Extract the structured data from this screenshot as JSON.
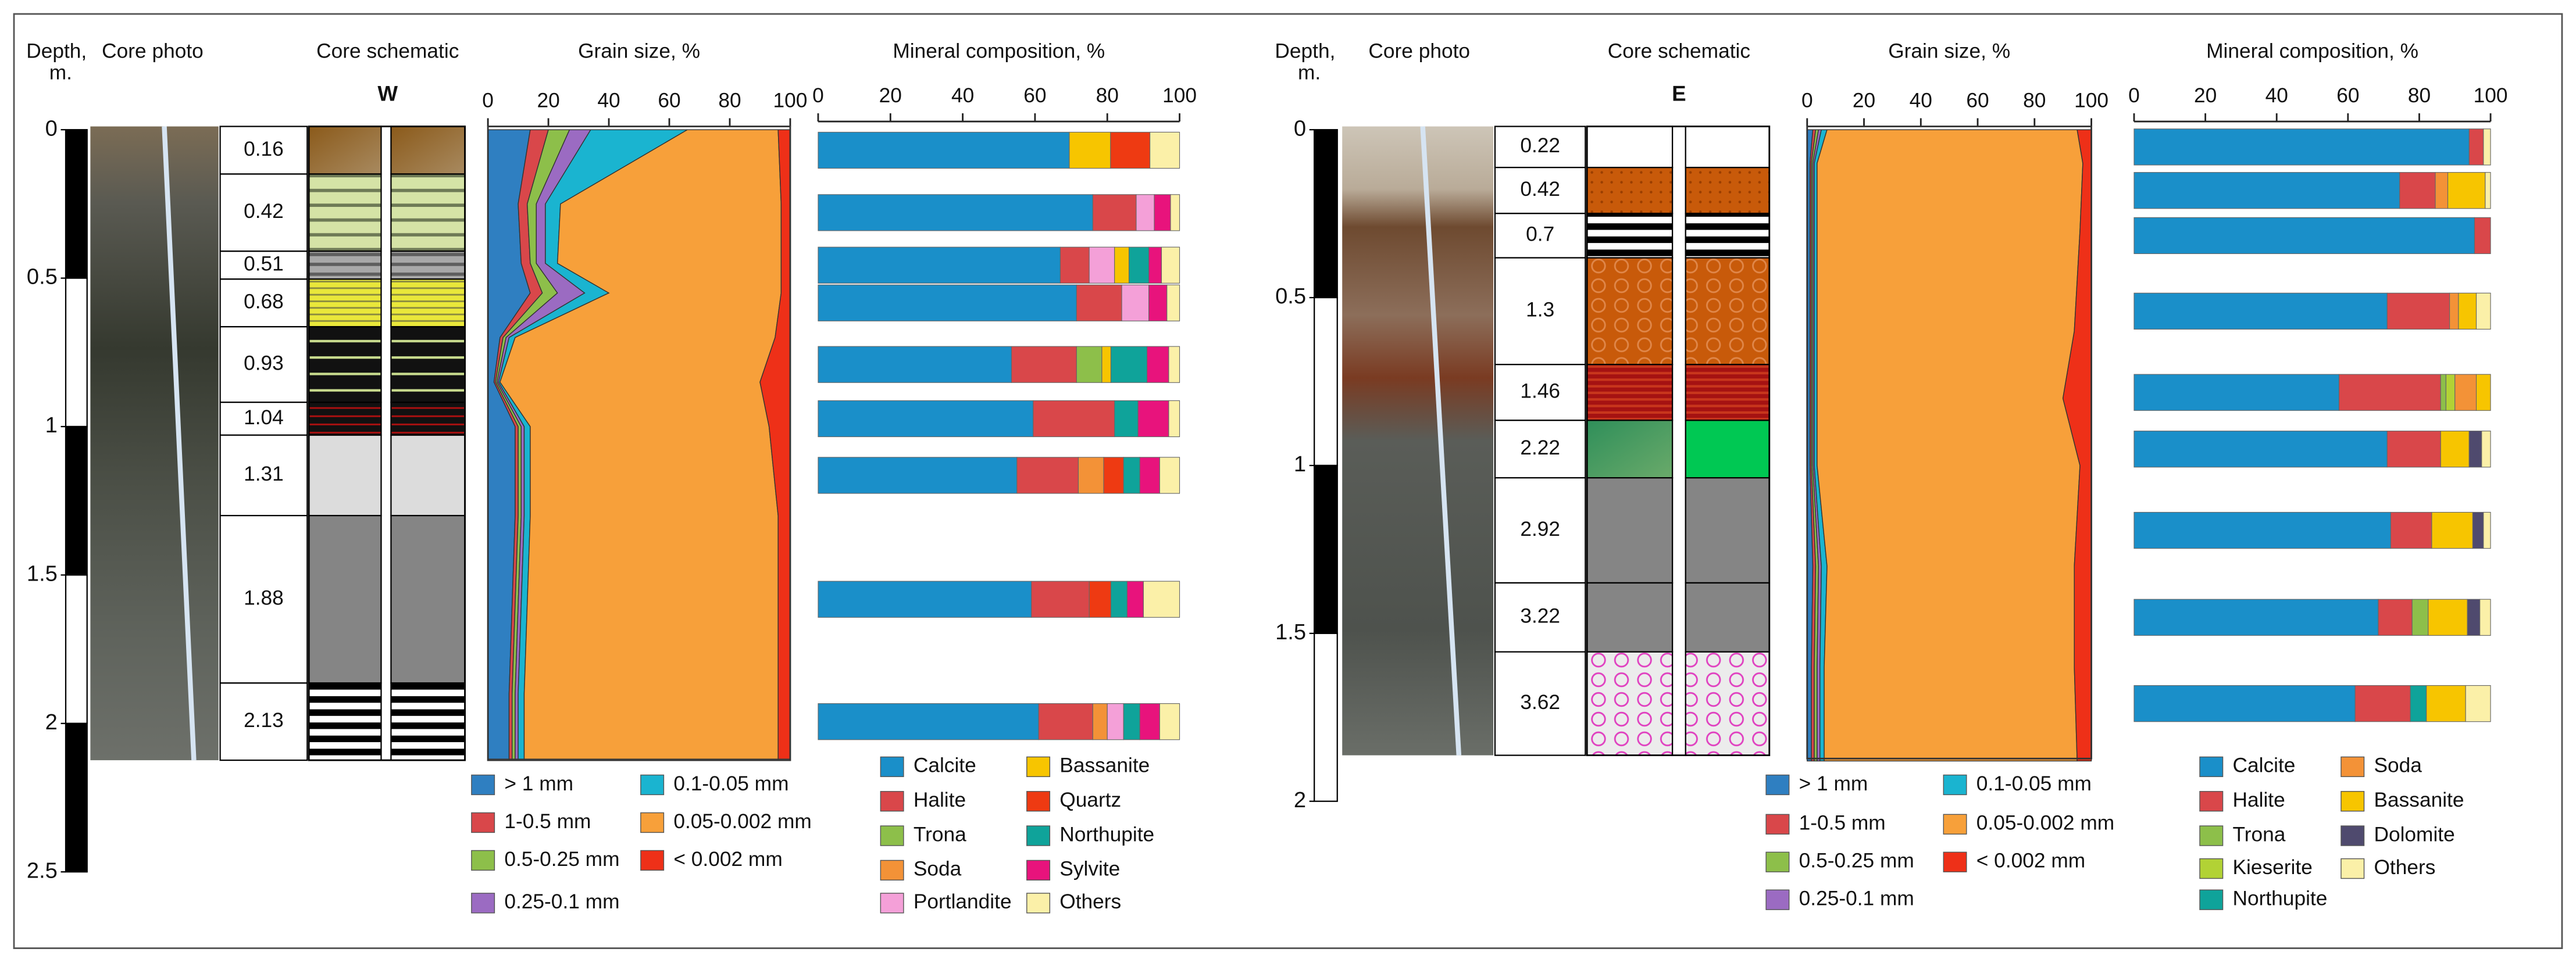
{
  "panels": [
    {
      "depth_label": [
        "Depth,",
        "m."
      ],
      "photo_label": "Core photo",
      "depth_axis": {
        "ylim": [
          0,
          2.5
        ],
        "yticks": [
          0,
          0.5,
          1,
          1.5,
          2,
          2.5
        ]
      },
      "schematic": {
        "title": "Core schematic",
        "code": "W",
        "labels": [
          0.16,
          0.42,
          0.51,
          0.68,
          0.93,
          1.04,
          1.31,
          1.88,
          2.13
        ]
      }
    },
    {
      "depth_label": [
        "Depth,",
        "m."
      ],
      "photo_label": "Core photo",
      "depth_axis": {
        "ylim": [
          0,
          2
        ],
        "yticks": [
          0,
          0.5,
          1,
          1.5,
          2
        ]
      },
      "schematic": {
        "title": "Core schematic",
        "code": "E",
        "labels": [
          0.22,
          0.42,
          0.7,
          1.3,
          1.46,
          2.22,
          2.92,
          3.22,
          3.62
        ]
      }
    }
  ],
  "chart_data": [
    {
      "type": "area",
      "stacked": true,
      "title": "Grain size, %",
      "xlim": [
        0,
        100
      ],
      "xticks": [
        0,
        20,
        40,
        60,
        80,
        100
      ],
      "y": [
        0,
        0.25,
        0.45,
        0.55,
        0.7,
        0.85,
        1.0,
        1.3,
        1.6,
        1.9,
        2.12
      ],
      "series": [
        {
          "name": "> 1 mm",
          "color": "#2f7fc1",
          "values": [
            14,
            10,
            11,
            14,
            4,
            2,
            9,
            9,
            8,
            7,
            7
          ]
        },
        {
          "name": "1-0.5 mm",
          "color": "#d9474a",
          "values": [
            6,
            3,
            3,
            4,
            1,
            0.5,
            1,
            1,
            1,
            1,
            1
          ]
        },
        {
          "name": "0.5-0.25 mm",
          "color": "#8dbf4a",
          "values": [
            7,
            3,
            2,
            5,
            1,
            0.5,
            1,
            1,
            1,
            1,
            1
          ]
        },
        {
          "name": "0.25-0.1 mm",
          "color": "#9b6bc2",
          "values": [
            7,
            3,
            3,
            9,
            1,
            0.5,
            1,
            1,
            1,
            1,
            1
          ]
        },
        {
          "name": "0.1-0.05 mm",
          "color": "#1ab4d0",
          "values": [
            32,
            5,
            4,
            8,
            2,
            0.5,
            2,
            2,
            2,
            2,
            2
          ]
        },
        {
          "name": "0.05-0.002 mm",
          "color": "#f7a03a",
          "values": [
            30,
            73,
            74,
            57,
            86,
            86,
            79,
            82,
            83,
            84,
            84
          ]
        },
        {
          "name": "< 0.002 mm",
          "color": "#ee3018",
          "values": [
            4,
            3,
            3,
            3,
            5,
            10,
            7,
            4,
            4,
            4,
            4
          ]
        }
      ]
    },
    {
      "type": "bar",
      "stacked": true,
      "title": "Mineral composition, %",
      "xlim": [
        0,
        100
      ],
      "xticks": [
        0,
        20,
        40,
        60,
        80,
        100
      ],
      "categories": [
        null,
        null,
        null,
        null,
        null,
        null,
        null,
        null,
        null
      ],
      "series": [
        {
          "name": "Calcite",
          "color": "#1a8fc9",
          "values": [
            69.5,
            76,
            67,
            71.5,
            53.5,
            59.5,
            55,
            59,
            61
          ]
        },
        {
          "name": "Halite",
          "color": "#d9474a",
          "values": [
            0,
            12,
            8,
            12.5,
            18,
            22.5,
            17,
            16,
            15
          ]
        },
        {
          "name": "Trona",
          "color": "#8dbf4a",
          "values": [
            0,
            0,
            0,
            0,
            7,
            0,
            0,
            0,
            0
          ]
        },
        {
          "name": "Soda",
          "color": "#f39237",
          "values": [
            0,
            0,
            0,
            0,
            0,
            0,
            7,
            0,
            4
          ]
        },
        {
          "name": "Portlandite",
          "color": "#f4a0d8",
          "values": [
            0,
            5,
            7,
            7.5,
            0,
            0,
            0,
            0,
            4.5
          ]
        },
        {
          "name": "Bassanite",
          "color": "#f7c500",
          "values": [
            11.4,
            0,
            4,
            0,
            2.5,
            0,
            0,
            0,
            0
          ]
        },
        {
          "name": "Quartz",
          "color": "#ee3a12",
          "values": [
            10.9,
            0,
            0,
            0,
            0,
            0,
            5.5,
            6,
            0
          ]
        },
        {
          "name": "Northupite",
          "color": "#0fa39a",
          "values": [
            0,
            0,
            5.5,
            0,
            10,
            6.5,
            4.5,
            4.5,
            4.5
          ]
        },
        {
          "name": "Sylvite",
          "color": "#e8137c",
          "values": [
            0,
            4.5,
            3.5,
            5,
            6,
            8.5,
            5.5,
            4.5,
            5.5
          ]
        },
        {
          "name": "Others",
          "color": "#fbf0a8",
          "values": [
            8.2,
            2.5,
            5,
            3.5,
            3,
            3,
            5.5,
            10,
            5.5
          ]
        }
      ]
    },
    {
      "type": "area",
      "stacked": true,
      "title": "Grain size, %",
      "xlim": [
        0,
        100
      ],
      "xticks": [
        0,
        20,
        40,
        60,
        80,
        100
      ],
      "y": [
        0,
        0.1,
        0.3,
        0.6,
        0.8,
        1.0,
        1.3,
        1.6,
        1.88
      ],
      "series": [
        {
          "name": "> 1 mm",
          "color": "#2f7fc1",
          "values": [
            2,
            1,
            1,
            1,
            1,
            1,
            2,
            1.5,
            1.5
          ]
        },
        {
          "name": "1-0.5 mm",
          "color": "#d9474a",
          "values": [
            1,
            0.5,
            0.5,
            0.5,
            0.5,
            0.5,
            1,
            1,
            1
          ]
        },
        {
          "name": "0.5-0.25 mm",
          "color": "#8dbf4a",
          "values": [
            1,
            0.5,
            0.5,
            0.5,
            0.5,
            0.5,
            1,
            1,
            1
          ]
        },
        {
          "name": "0.25-0.1 mm",
          "color": "#9b6bc2",
          "values": [
            1,
            0.5,
            0.5,
            0.5,
            0.5,
            0.5,
            1,
            1,
            1
          ]
        },
        {
          "name": "0.1-0.05 mm",
          "color": "#1ab4d0",
          "values": [
            2,
            1,
            1,
            1,
            1,
            1,
            2,
            1.5,
            1.5
          ]
        },
        {
          "name": "0.05-0.002 mm",
          "color": "#f7a03a",
          "values": [
            88,
            93.5,
            92.5,
            90.5,
            86.5,
            92.5,
            87,
            88,
            89
          ]
        },
        {
          "name": "< 0.002 mm",
          "color": "#ee3018",
          "values": [
            5,
            3,
            4,
            6,
            10,
            4,
            6,
            6,
            5
          ]
        }
      ]
    },
    {
      "type": "bar",
      "stacked": true,
      "title": "Mineral composition, %",
      "xlim": [
        0,
        100
      ],
      "xticks": [
        0,
        20,
        40,
        60,
        80,
        100
      ],
      "categories": [
        null,
        null,
        null,
        null,
        null,
        null,
        null,
        null,
        null
      ],
      "series": [
        {
          "name": "Calcite",
          "color": "#1a8fc9",
          "values": [
            94,
            74.5,
            95.5,
            71,
            57.5,
            71,
            72,
            68.5,
            62
          ]
        },
        {
          "name": "Halite",
          "color": "#d9474a",
          "values": [
            4,
            10,
            4.5,
            17.5,
            28.5,
            15,
            11.5,
            9.5,
            15.5
          ]
        },
        {
          "name": "Trona",
          "color": "#8dbf4a",
          "values": [
            0,
            0,
            0,
            0,
            1.5,
            0,
            0,
            4.5,
            0
          ]
        },
        {
          "name": "Kieserite",
          "color": "#b2d235",
          "values": [
            0,
            0,
            0,
            0,
            2.5,
            0,
            0,
            0,
            0
          ]
        },
        {
          "name": "Northupite",
          "color": "#0fa39a",
          "values": [
            0,
            0,
            0,
            0,
            0,
            0,
            0,
            0,
            4.5
          ]
        },
        {
          "name": "Soda",
          "color": "#f39237",
          "values": [
            0,
            3.5,
            0,
            2.5,
            6,
            0,
            0,
            0,
            0
          ]
        },
        {
          "name": "Bassanite",
          "color": "#f7c500",
          "values": [
            0,
            10.5,
            0,
            5,
            4,
            8,
            11.5,
            11,
            11
          ]
        },
        {
          "name": "Dolomite",
          "color": "#4f4a6e",
          "values": [
            0,
            0,
            0,
            0,
            0,
            3.5,
            3,
            3.5,
            0
          ]
        },
        {
          "name": "Others",
          "color": "#fbf0a8",
          "values": [
            2,
            1.5,
            0,
            4,
            0,
            2.5,
            2,
            3,
            7
          ]
        }
      ]
    }
  ]
}
